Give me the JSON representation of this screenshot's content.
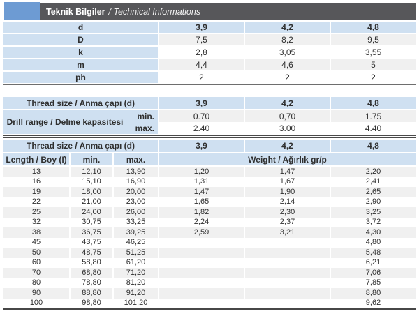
{
  "header": {
    "title_tr": "Teknik Bilgiler",
    "title_en": "/ Technical Informations"
  },
  "colors": {
    "accent_blue": "#6d9bd3",
    "title_bar_gray": "#57575a",
    "cell_blue": "#cfe0f1",
    "stripe_gray": "#f0f0f0"
  },
  "dimensions_table": {
    "rows": [
      {
        "label": "d",
        "values": [
          "3,9",
          "4,2",
          "4,8"
        ]
      },
      {
        "label": "D",
        "values": [
          "7,5",
          "8,2",
          "9,5"
        ]
      },
      {
        "label": "k",
        "values": [
          "2,8",
          "3,05",
          "3,55"
        ]
      },
      {
        "label": "m",
        "values": [
          "4,4",
          "4,6",
          "5"
        ]
      },
      {
        "label": "ph",
        "values": [
          "2",
          "2",
          "2"
        ]
      }
    ]
  },
  "drill_table": {
    "thread_size_label": "Thread size / Anma çapı (d)",
    "thread_sizes": [
      "3,9",
      "4,2",
      "4,8"
    ],
    "drill_range_label": "Drill range / Delme kapasitesi",
    "min_label": "min.",
    "max_label": "max.",
    "min_values": [
      "0.70",
      "0,70",
      "1.75"
    ],
    "max_values": [
      "2.40",
      "3.00",
      "4.40"
    ]
  },
  "length_weight_table": {
    "thread_size_label": "Thread size / Anma çapı (d)",
    "thread_sizes": [
      "3,9",
      "4,2",
      "4,8"
    ],
    "length_label": "Length / Boy (I)",
    "min_label": "min.",
    "max_label": "max.",
    "weight_label": "Weight / Ağırlık gr/p",
    "rows": [
      [
        "13",
        "12,10",
        "13,90",
        "1,20",
        "1,47",
        "2,20"
      ],
      [
        "16",
        "15,10",
        "16,90",
        "1,31",
        "1,67",
        "2,41"
      ],
      [
        "19",
        "18,00",
        "20,00",
        "1,47",
        "1,90",
        "2,65"
      ],
      [
        "22",
        "21,00",
        "23,00",
        "1,65",
        "2,14",
        "2,90"
      ],
      [
        "25",
        "24,00",
        "26,00",
        "1,82",
        "2,30",
        "3,25"
      ],
      [
        "32",
        "30,75",
        "33,25",
        "2,24",
        "2,37",
        "3,72"
      ],
      [
        "38",
        "36,75",
        "39,25",
        "2,59",
        "3,21",
        "4,30"
      ],
      [
        "45",
        "43,75",
        "46,25",
        "",
        "",
        "4,80"
      ],
      [
        "50",
        "48,75",
        "51,25",
        "",
        "",
        "5,48"
      ],
      [
        "60",
        "58,80",
        "61,20",
        "",
        "",
        "6,21"
      ],
      [
        "70",
        "68,80",
        "71,20",
        "",
        "",
        "7,06"
      ],
      [
        "80",
        "78,80",
        "81,20",
        "",
        "",
        "7,85"
      ],
      [
        "90",
        "88,80",
        "91,20",
        "",
        "",
        "8,80"
      ],
      [
        "100",
        "98,80",
        "101,20",
        "",
        "",
        "9,62"
      ]
    ]
  }
}
